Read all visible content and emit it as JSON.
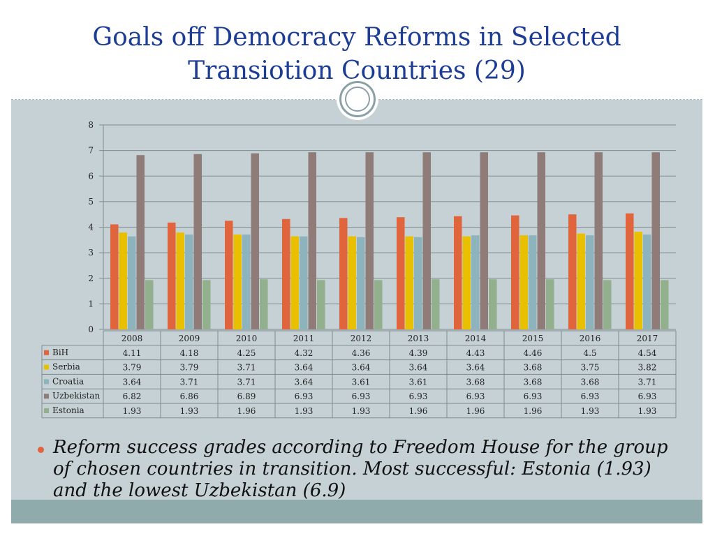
{
  "slide": {
    "title": "Goals off Democracy Reforms in Selected Transiotion Countries (29)",
    "bullet": "Reform success grades according to Freedom House for the group of chosen countries in transition. Most successful: Estonia (1.93) and the lowest Uzbekistan (6.9)"
  },
  "colors": {
    "title": "#1d3d94",
    "bullet": "#e0643c",
    "background": "#c6d1d5"
  },
  "chart_data": {
    "type": "bar",
    "categories": [
      "2008",
      "2009",
      "2010",
      "2011",
      "2012",
      "2013",
      "2014",
      "2015",
      "2016",
      "2017"
    ],
    "ylim": [
      0,
      8
    ],
    "y_ticks": [
      "0",
      "1",
      "2",
      "3",
      "4",
      "5",
      "6",
      "7",
      "8"
    ],
    "grid": true,
    "legend": "data-table-left",
    "series": [
      {
        "name": "BiH",
        "color": "#e0643c",
        "values": [
          4.11,
          4.18,
          4.25,
          4.32,
          4.36,
          4.39,
          4.43,
          4.46,
          4.5,
          4.54
        ],
        "labels": [
          "4.11",
          "4.18",
          "4.25",
          "4.32",
          "4.36",
          "4.39",
          "4.43",
          "4.46",
          "4.5",
          "4.54"
        ]
      },
      {
        "name": "Serbia",
        "color": "#e8c000",
        "values": [
          3.79,
          3.79,
          3.71,
          3.64,
          3.64,
          3.64,
          3.64,
          3.68,
          3.75,
          3.82
        ],
        "labels": [
          "3.79",
          "3.79",
          "3.71",
          "3.64",
          "3.64",
          "3.64",
          "3.64",
          "3.68",
          "3.75",
          "3.82"
        ]
      },
      {
        "name": "Croatia",
        "color": "#8db3bd",
        "values": [
          3.64,
          3.71,
          3.71,
          3.64,
          3.61,
          3.61,
          3.68,
          3.68,
          3.68,
          3.71
        ],
        "labels": [
          "3.64",
          "3.71",
          "3.71",
          "3.64",
          "3.61",
          "3.61",
          "3.68",
          "3.68",
          "3.68",
          "3.71"
        ]
      },
      {
        "name": "Uzbekistan",
        "color": "#8f7b78",
        "values": [
          6.82,
          6.86,
          6.89,
          6.93,
          6.93,
          6.93,
          6.93,
          6.93,
          6.93,
          6.93
        ],
        "labels": [
          "6.82",
          "6.86",
          "6.89",
          "6.93",
          "6.93",
          "6.93",
          "6.93",
          "6.93",
          "6.93",
          "6.93"
        ]
      },
      {
        "name": "Estonia",
        "color": "#93b08e",
        "values": [
          1.93,
          1.93,
          1.96,
          1.93,
          1.93,
          1.96,
          1.96,
          1.96,
          1.93,
          1.93
        ],
        "labels": [
          "1.93",
          "1.93",
          "1.96",
          "1.93",
          "1.93",
          "1.96",
          "1.96",
          "1.96",
          "1.93",
          "1.93"
        ]
      }
    ]
  }
}
